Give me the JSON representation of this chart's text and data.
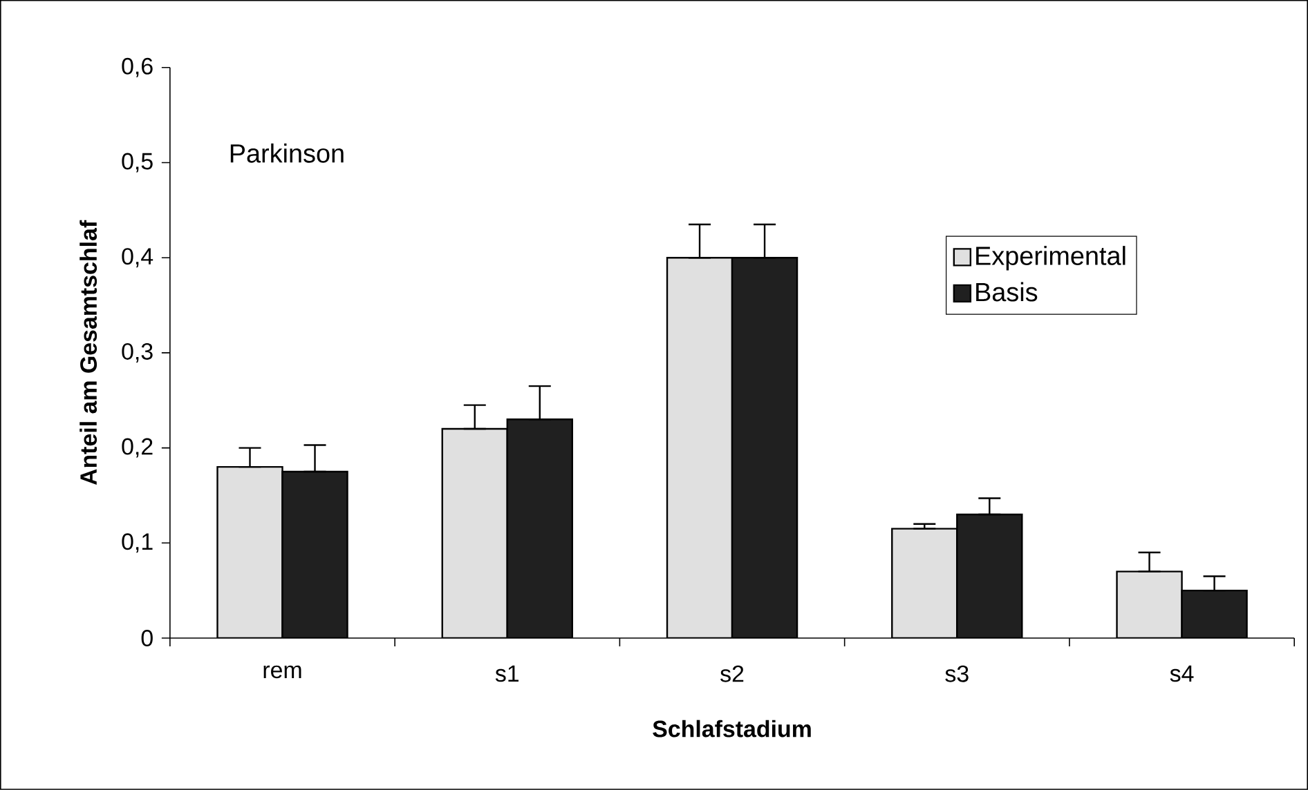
{
  "chart_data": {
    "type": "bar",
    "xlabel": "Schlafstadium",
    "ylabel": "Anteil am Gesamtschlaf",
    "categories": [
      "rem",
      "s1",
      "s2",
      "s3",
      "s4"
    ],
    "series": [
      {
        "name": "Experimental",
        "color": "#e0e0e0",
        "values": [
          0.18,
          0.22,
          0.4,
          0.115,
          0.07
        ],
        "errors": [
          [
            0.18,
            0.2
          ],
          [
            0.22,
            0.245
          ],
          [
            0.4,
            0.435
          ],
          [
            0.115,
            0.12
          ],
          [
            0.07,
            0.09
          ]
        ]
      },
      {
        "name": "Basis",
        "color": "#202020",
        "values": [
          0.175,
          0.23,
          0.4,
          0.13,
          0.05
        ],
        "errors": [
          [
            0.175,
            0.203
          ],
          [
            0.23,
            0.265
          ],
          [
            0.4,
            0.435
          ],
          [
            0.13,
            0.147
          ],
          [
            0.05,
            0.065
          ]
        ]
      }
    ],
    "ylim": [
      0,
      0.6
    ],
    "yticks": [
      0,
      {
        "value": 0.1,
        "label": "0,1"
      },
      {
        "value": 0.2,
        "label": "0,2"
      },
      {
        "value": 0.3,
        "label": "0,3"
      },
      {
        "value": 0.4,
        "label": "0,4"
      },
      {
        "value": 0.5,
        "label": "0,5"
      },
      {
        "value": 0.6,
        "label": "0,6"
      }
    ],
    "legend": "right",
    "annotations": [
      "Parkinson"
    ]
  }
}
